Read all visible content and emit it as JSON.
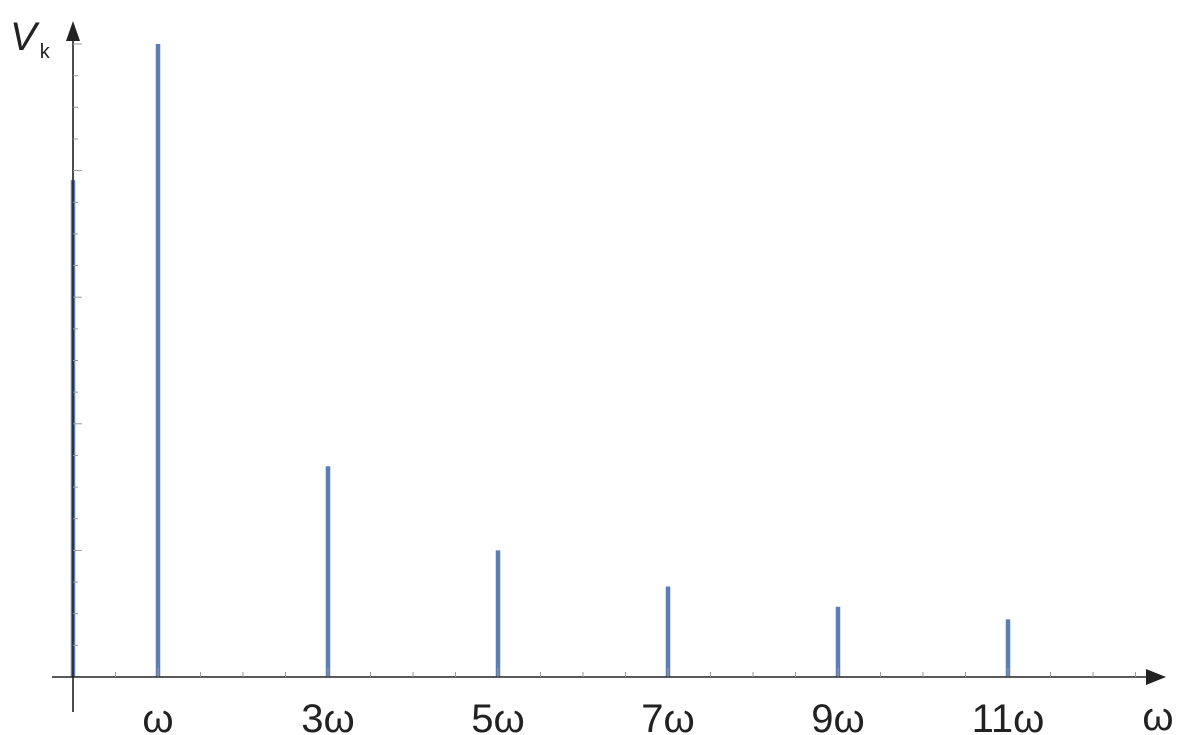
{
  "chart_data": {
    "type": "bar",
    "x": [
      0,
      1,
      3,
      5,
      7,
      9,
      11
    ],
    "values": [
      0.785,
      1.0,
      0.333,
      0.2,
      0.143,
      0.111,
      0.091
    ],
    "x_tick_values": [
      1,
      3,
      5,
      7,
      9,
      11
    ],
    "x_tick_labels": [
      "ω",
      "3ω",
      "5ω",
      "7ω",
      "9ω",
      "11ω"
    ],
    "xlabel": "ω",
    "ylabel": "V",
    "ylabel_subscript": "k",
    "xlim": [
      0,
      12.5
    ],
    "ylim": [
      0,
      1.0
    ],
    "grid": false,
    "colors": {
      "bars": "#5b7fb5",
      "axes": "#222222"
    }
  }
}
